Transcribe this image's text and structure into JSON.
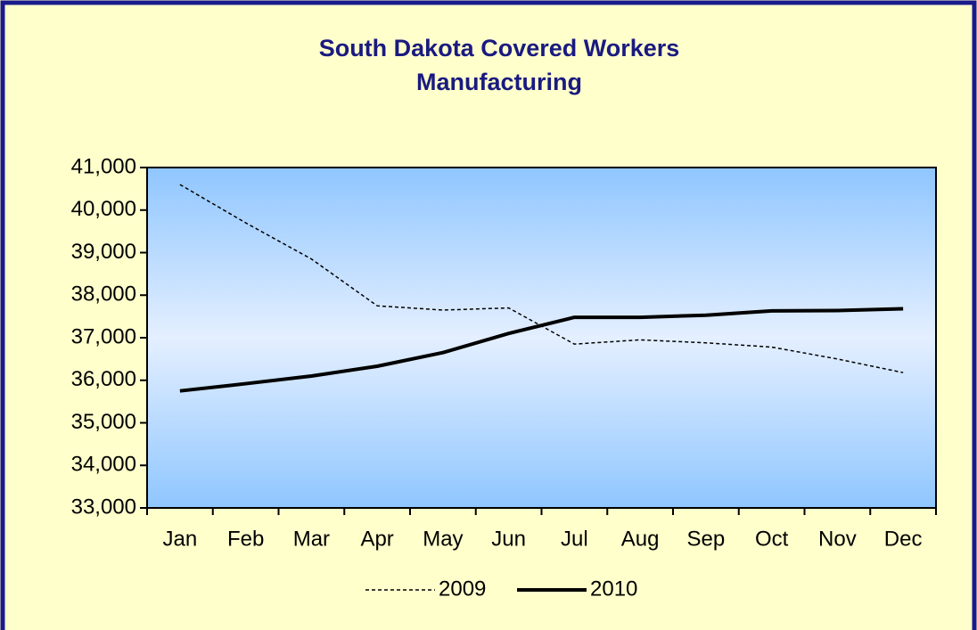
{
  "chart_data": {
    "type": "line",
    "title": "South Dakota Covered Workers",
    "subtitle": "Manufacturing",
    "categories": [
      "Jan",
      "Feb",
      "Mar",
      "Apr",
      "May",
      "Jun",
      "Jul",
      "Aug",
      "Sep",
      "Oct",
      "Nov",
      "Dec"
    ],
    "series": [
      {
        "name": "2009",
        "color": "#000000",
        "style": "dashed",
        "values": [
          40600,
          39700,
          38850,
          37750,
          37650,
          37700,
          36850,
          36950,
          36880,
          36780,
          36500,
          36180
        ]
      },
      {
        "name": "2010",
        "color": "#000000",
        "style": "solid",
        "values": [
          35750,
          35920,
          36100,
          36330,
          36650,
          37100,
          37480,
          37480,
          37530,
          37630,
          37640,
          37680
        ]
      }
    ],
    "ylim": [
      33000,
      41000
    ],
    "yticks": [
      {
        "value": 33000,
        "label": "33,000"
      },
      {
        "value": 34000,
        "label": "34,000"
      },
      {
        "value": 35000,
        "label": "35,000"
      },
      {
        "value": 36000,
        "label": "36,000"
      },
      {
        "value": 37000,
        "label": "37,000"
      },
      {
        "value": 38000,
        "label": "38,000"
      },
      {
        "value": 39000,
        "label": "39,000"
      },
      {
        "value": 40000,
        "label": "40,000"
      },
      {
        "value": 41000,
        "label": "41,000"
      }
    ],
    "legend": "bottom"
  }
}
